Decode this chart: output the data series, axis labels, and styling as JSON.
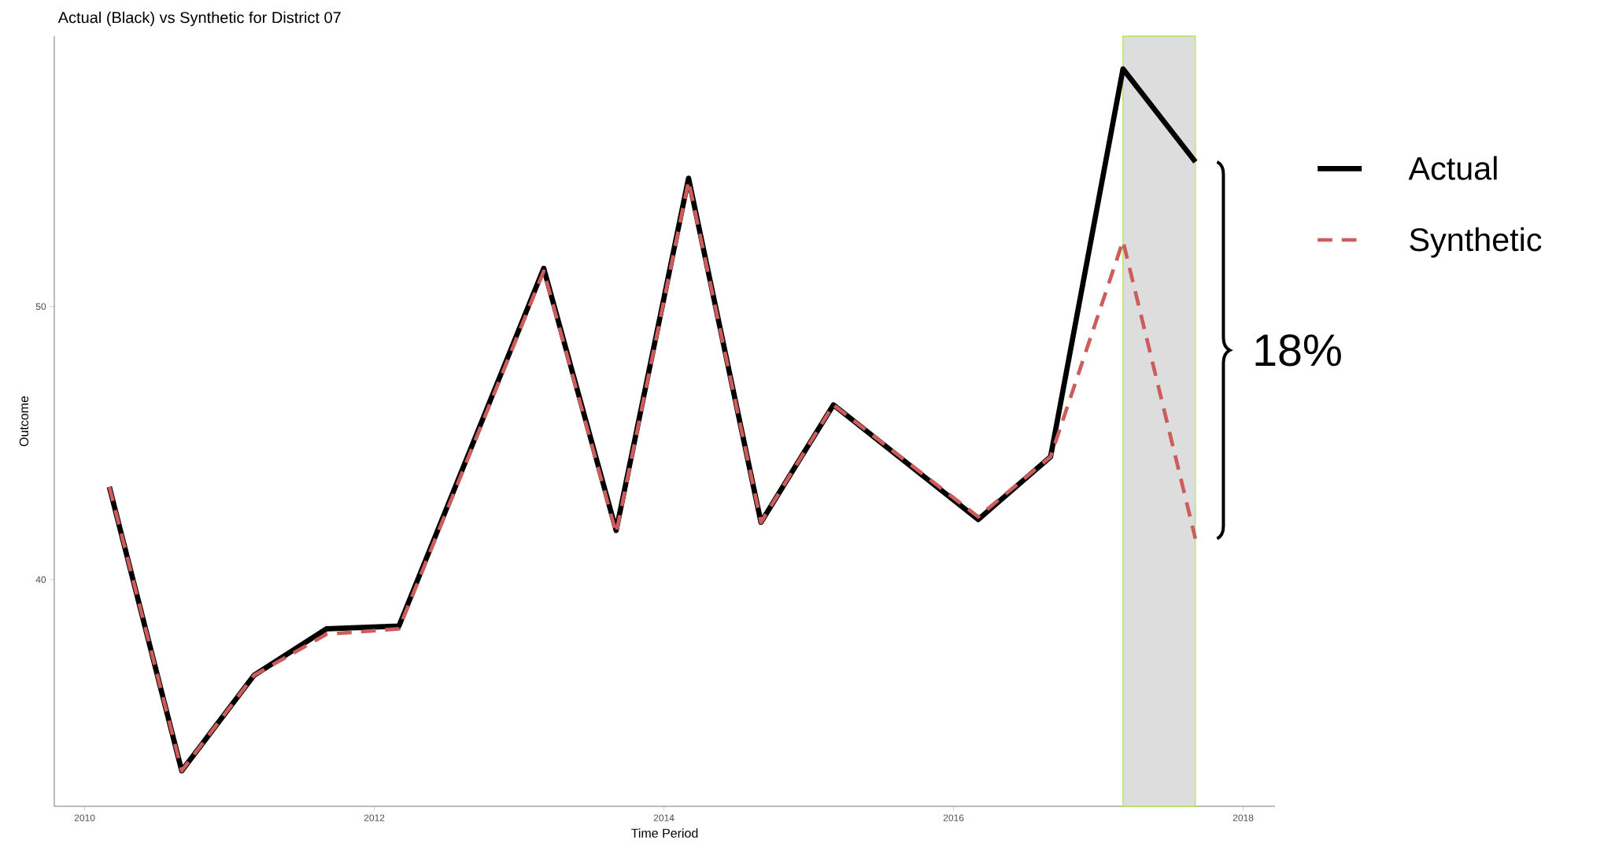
{
  "chart_data": {
    "type": "line",
    "title": "Actual (Black) vs Synthetic for District 07",
    "xlabel": "Time Period",
    "ylabel": "Outcome",
    "x": [
      2010.17,
      2010.67,
      2011.17,
      2011.67,
      2012.17,
      2013.17,
      2013.67,
      2014.17,
      2014.67,
      2015.17,
      2016.17,
      2016.67,
      2017.17,
      2017.67
    ],
    "series": [
      {
        "name": "Actual",
        "color": "#000000",
        "line_style": "solid",
        "values": [
          43.4,
          33.0,
          36.5,
          38.2,
          38.3,
          51.4,
          41.8,
          54.7,
          42.1,
          46.4,
          42.2,
          44.5,
          58.7,
          55.3
        ]
      },
      {
        "name": "Synthetic",
        "color": "#cd5c5c",
        "line_style": "dashed",
        "values": [
          43.4,
          33.0,
          36.5,
          38.0,
          38.2,
          51.3,
          41.7,
          54.6,
          42.1,
          46.4,
          42.3,
          44.5,
          52.4,
          41.5
        ]
      }
    ],
    "xlim": [
      2009.79,
      2018.22
    ],
    "ylim": [
      31.7,
      59.9
    ],
    "xticks": [
      2010,
      2012,
      2014,
      2016,
      2018
    ],
    "yticks": [
      40,
      50
    ],
    "bands": [
      {
        "axis": "x",
        "from": 2017.17,
        "to": 2017.67,
        "color": "#dddddd"
      }
    ],
    "annotations": [
      "18%"
    ],
    "grid": false,
    "legend": "right",
    "marker": "none"
  }
}
